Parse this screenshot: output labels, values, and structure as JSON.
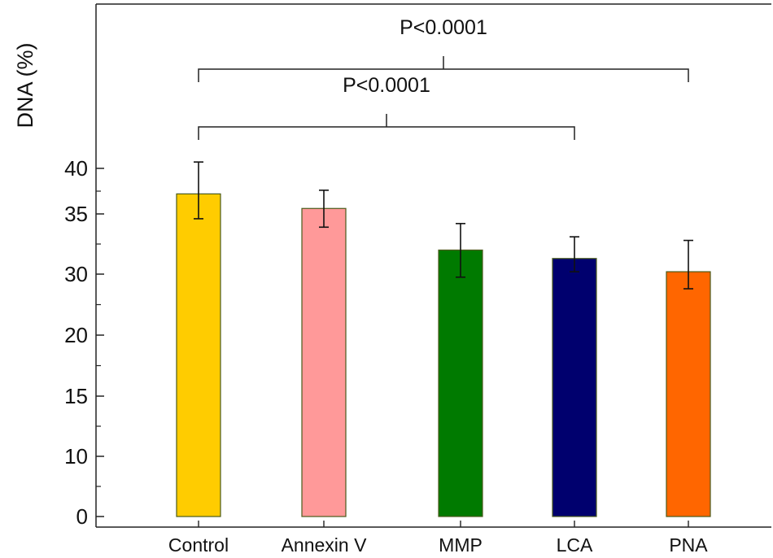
{
  "chart_data": {
    "type": "bar",
    "title": "",
    "xlabel": "",
    "ylabel": "DNA (%)",
    "categories": [
      "Control",
      "Annexin V",
      "MMP",
      "LCA",
      "PNA"
    ],
    "values": [
      37.2,
      35.6,
      32.0,
      31.3,
      30.2
    ],
    "error_upper": [
      40.7,
      37.6,
      34.2,
      33.1,
      32.8
    ],
    "error_lower": [
      34.6,
      33.9,
      29.5,
      30.2,
      27.6
    ],
    "bar_colors": [
      "#FFCC00",
      "#FF9999",
      "#007A00",
      "#00006E",
      "#FF6600"
    ],
    "y_ticks": [
      0,
      10,
      15,
      20,
      30,
      35,
      40
    ],
    "y_tick_labels": [
      "0",
      "10",
      "15",
      "20",
      "30",
      "35",
      "40"
    ],
    "grid": false,
    "legend": "none",
    "annotations": [
      {
        "label": "P<0.0001",
        "from": "Control",
        "to": "PNA"
      },
      {
        "label": "P<0.0001",
        "from": "Control",
        "to": "LCA"
      }
    ]
  }
}
